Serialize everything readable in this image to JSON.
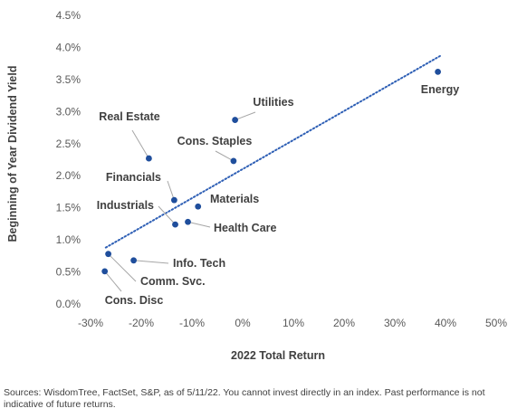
{
  "chart_data": {
    "type": "scatter",
    "title": "",
    "xlabel": "2022 Total Return",
    "ylabel": "Beginning of Year Dividend Yield",
    "xlim": [
      -30,
      50
    ],
    "ylim": [
      0,
      4.5
    ],
    "x_ticks": [
      "-30%",
      "-20%",
      "-10%",
      "0%",
      "10%",
      "20%",
      "30%",
      "40%",
      "50%"
    ],
    "y_ticks": [
      "0.0%",
      "0.5%",
      "1.0%",
      "1.5%",
      "2.0%",
      "2.5%",
      "3.0%",
      "3.5%",
      "4.0%",
      "4.5%"
    ],
    "grid": false,
    "trendline": {
      "style": "dotted",
      "from": [
        -27,
        0.88
      ],
      "to": [
        39,
        3.87
      ]
    },
    "points": [
      {
        "label": "Energy",
        "x": 38.5,
        "y": 3.62
      },
      {
        "label": "Utilities",
        "x": -1.5,
        "y": 2.87
      },
      {
        "label": "Real Estate",
        "x": -18.5,
        "y": 2.27
      },
      {
        "label": "Cons. Staples",
        "x": -1.8,
        "y": 2.23
      },
      {
        "label": "Financials",
        "x": -13.5,
        "y": 1.62
      },
      {
        "label": "Materials",
        "x": -8.8,
        "y": 1.52
      },
      {
        "label": "Industrials",
        "x": -13.3,
        "y": 1.24
      },
      {
        "label": "Health Care",
        "x": -10.8,
        "y": 1.28
      },
      {
        "label": "Info. Tech",
        "x": -21.5,
        "y": 0.68
      },
      {
        "label": "Comm. Svc.",
        "x": -26.5,
        "y": 0.78
      },
      {
        "label": "Cons. Disc",
        "x": -27.2,
        "y": 0.51
      }
    ],
    "marker_color": "#1f4e9c",
    "trendline_color": "#2e5fb5"
  },
  "footnote": "Sources: WisdomTree, FactSet, S&P, as of 5/11/22. You cannot invest directly in an index. Past performance is not indicative of future returns."
}
